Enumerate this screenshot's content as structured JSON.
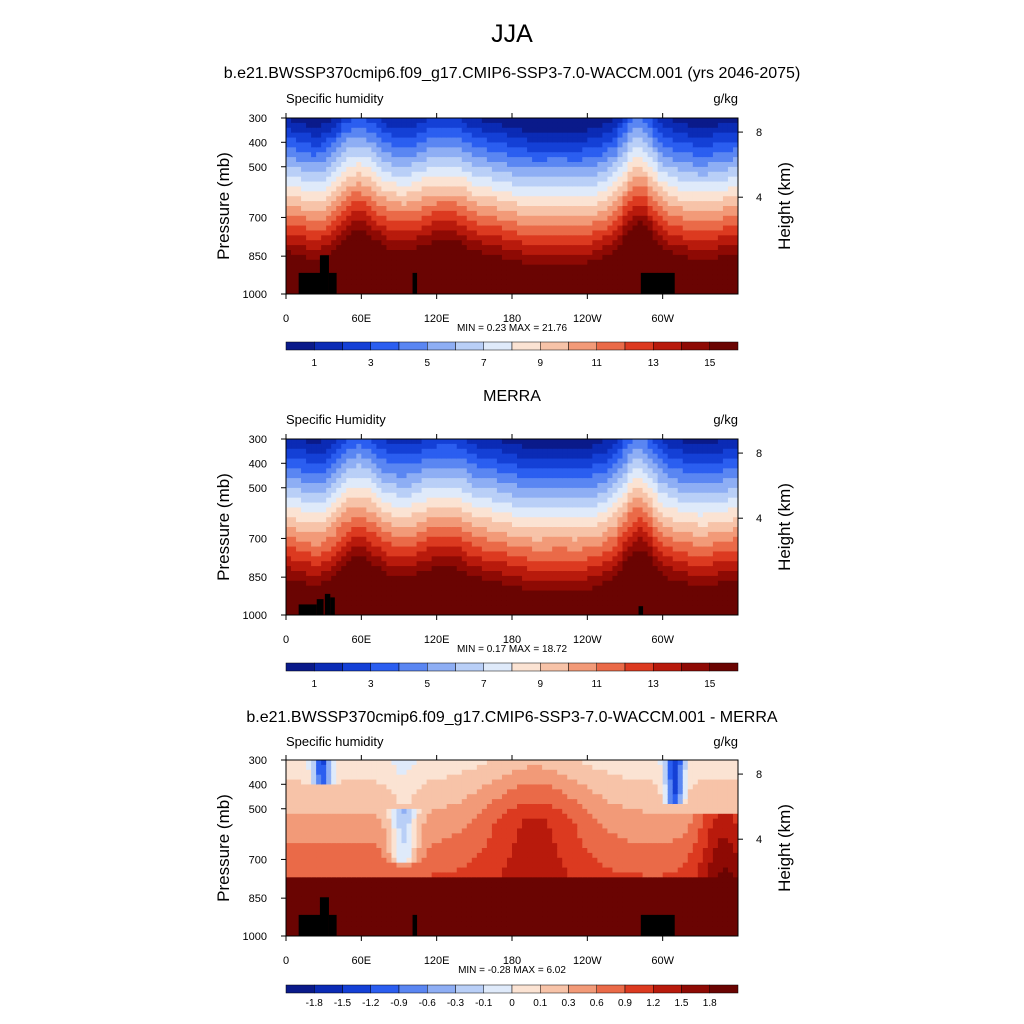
{
  "main_title": "JJA",
  "chart_data": [
    {
      "type": "heatmap",
      "title": "b.e21.BWSSP370cmip6.f09_g17.CMIP6-SSP3-7.0-WACCM.001 (yrs 2046-2075)",
      "left_label": "Specific humidity",
      "units": "g/kg",
      "ylabel": "Pressure (mb)",
      "y2label": "Height (km)",
      "x_ticks": [
        "0",
        "60E",
        "120E",
        "180",
        "120W",
        "60W"
      ],
      "y_ticks": [
        "300",
        "400",
        "500",
        "700",
        "850",
        "1000"
      ],
      "y2_ticks": [
        "8",
        "4"
      ],
      "stats": "MIN =   0.23  MAX =  21.76",
      "min": 0.23,
      "max": 21.76,
      "colorbar_labels": [
        "1",
        "3",
        "5",
        "7",
        "9",
        "11",
        "13",
        "15"
      ]
    },
    {
      "type": "heatmap",
      "title": "MERRA",
      "left_label": "Specific Humidity",
      "units": "g/kg",
      "ylabel": "Pressure (mb)",
      "y2label": "Height (km)",
      "x_ticks": [
        "0",
        "60E",
        "120E",
        "180",
        "120W",
        "60W"
      ],
      "y_ticks": [
        "300",
        "400",
        "500",
        "700",
        "850",
        "1000"
      ],
      "y2_ticks": [
        "8",
        "4"
      ],
      "stats": "MIN =   0.17  MAX =  18.72",
      "min": 0.17,
      "max": 18.72,
      "colorbar_labels": [
        "1",
        "3",
        "5",
        "7",
        "9",
        "11",
        "13",
        "15"
      ]
    },
    {
      "type": "heatmap",
      "title": "b.e21.BWSSP370cmip6.f09_g17.CMIP6-SSP3-7.0-WACCM.001 - MERRA",
      "left_label": "Specific humidity",
      "units": "g/kg",
      "ylabel": "Pressure (mb)",
      "y2label": "Height (km)",
      "x_ticks": [
        "0",
        "60E",
        "120E",
        "180",
        "120W",
        "60W"
      ],
      "y_ticks": [
        "300",
        "400",
        "500",
        "700",
        "850",
        "1000"
      ],
      "y2_ticks": [
        "8",
        "4"
      ],
      "stats": "MIN =  -0.28  MAX =   6.02",
      "min": -0.28,
      "max": 6.02,
      "colorbar_labels": [
        "-1.8",
        "-1.5",
        "-1.2",
        "-0.9",
        "-0.6",
        "-0.3",
        "-0.1",
        "0",
        "0.1",
        "0.3",
        "0.6",
        "0.9",
        "1.2",
        "1.5",
        "1.8"
      ]
    }
  ],
  "colors": {
    "abs_scale": [
      "#0a1a8a",
      "#0b2bb5",
      "#1440d6",
      "#2b5ef0",
      "#5a86f2",
      "#8eaef4",
      "#b9cff7",
      "#dfeafa",
      "#fbe3d3",
      "#f7c3a8",
      "#f29a78",
      "#ea6a48",
      "#dc3a20",
      "#b81a0c",
      "#8e0a04",
      "#6a0402"
    ],
    "diff_scale": [
      "#0a1a8a",
      "#0b2bb5",
      "#1440d6",
      "#2b5ef0",
      "#5a86f2",
      "#8eaef4",
      "#b9cff7",
      "#dfeafa",
      "#fbe3d3",
      "#f7c3a8",
      "#f29a78",
      "#ea6a48",
      "#dc3a20",
      "#b81a0c",
      "#8e0a04",
      "#6a0402"
    ],
    "terrain": "#000000"
  }
}
